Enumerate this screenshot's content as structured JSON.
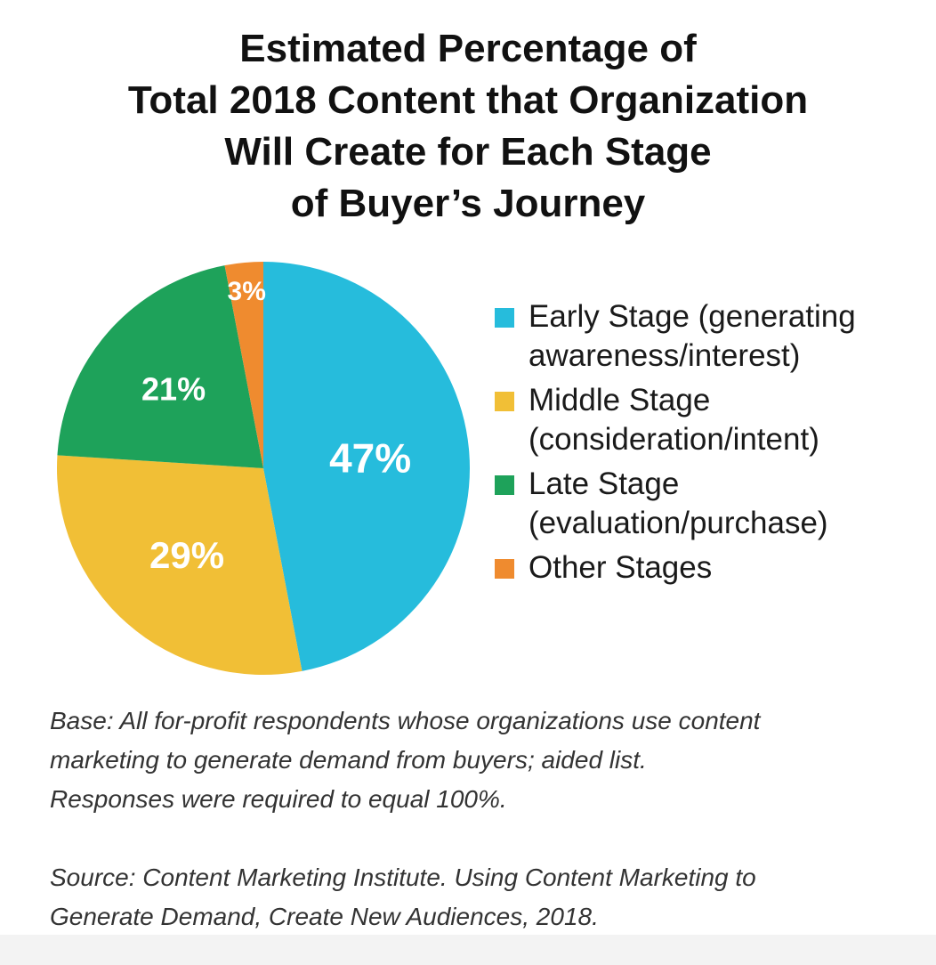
{
  "title_lines": [
    "Estimated Percentage of",
    "Total 2018 Content that Organization",
    "Will Create for Each Stage",
    "of Buyer’s Journey"
  ],
  "chart_data": {
    "type": "pie",
    "slices": [
      {
        "label": "Early Stage (generating awareness/interest)",
        "value": 47,
        "display": "47%",
        "color": "#26bcdc"
      },
      {
        "label": "Middle Stage (consideration/intent)",
        "value": 29,
        "display": "29%",
        "color": "#f1bf36"
      },
      {
        "label": "Late Stage (evaluation/purchase)",
        "value": 21,
        "display": "21%",
        "color": "#1ea25a"
      },
      {
        "label": "Other Stages",
        "value": 3,
        "display": "3%",
        "color": "#ef8b2f"
      }
    ],
    "legend_position": "right"
  },
  "legend": [
    {
      "text": "Early Stage (generating\n awareness/interest)",
      "color": "#26bcdc"
    },
    {
      "text": "Middle Stage\n(consideration/intent)",
      "color": "#f1bf36"
    },
    {
      "text": "Late Stage\n(evaluation/purchase)",
      "color": "#1ea25a"
    },
    {
      "text": "Other Stages",
      "color": "#ef8b2f"
    }
  ],
  "notes": {
    "base": "Base: All for-profit respondents whose organizations use content\nmarketing to generate demand from buyers; aided list.\nResponses were required to equal 100%.",
    "source": "Source: Content Marketing Institute. Using Content Marketing to\nGenerate Demand, Create New Audiences, 2018."
  }
}
